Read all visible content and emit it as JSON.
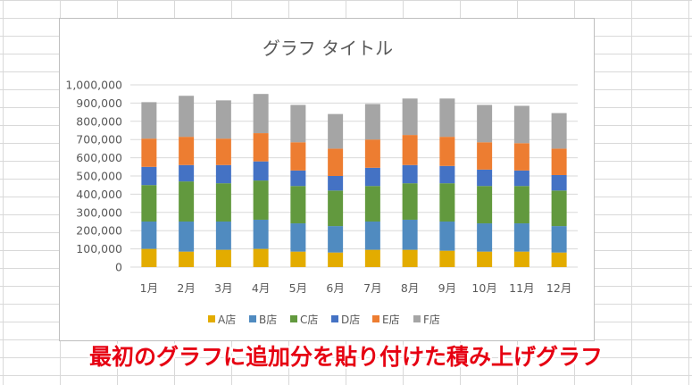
{
  "chart_data": {
    "type": "bar",
    "stacked": true,
    "title": "グラフ タイトル",
    "xlabel": "",
    "ylabel": "",
    "ylim": [
      0,
      1000000
    ],
    "yticks": [
      "0",
      "100,000",
      "200,000",
      "300,000",
      "400,000",
      "500,000",
      "600,000",
      "700,000",
      "800,000",
      "900,000",
      "1,000,000"
    ],
    "grid": true,
    "legend_position": "bottom",
    "categories": [
      "1月",
      "2月",
      "3月",
      "4月",
      "5月",
      "6月",
      "7月",
      "8月",
      "9月",
      "10月",
      "11月",
      "12月"
    ],
    "series": [
      {
        "name": "A店",
        "color": "#E3AC00",
        "values": [
          100000,
          85000,
          95000,
          100000,
          85000,
          80000,
          95000,
          95000,
          90000,
          85000,
          85000,
          80000
        ]
      },
      {
        "name": "B店",
        "color": "#508BC0",
        "values": [
          150000,
          165000,
          155000,
          160000,
          155000,
          145000,
          155000,
          165000,
          160000,
          155000,
          155000,
          145000
        ]
      },
      {
        "name": "C店",
        "color": "#62993E",
        "values": [
          200000,
          220000,
          210000,
          215000,
          205000,
          195000,
          195000,
          200000,
          210000,
          205000,
          205000,
          195000
        ]
      },
      {
        "name": "D店",
        "color": "#4472C4",
        "values": [
          100000,
          90000,
          100000,
          105000,
          85000,
          80000,
          100000,
          100000,
          95000,
          90000,
          85000,
          85000
        ]
      },
      {
        "name": "E店",
        "color": "#ED7D31",
        "values": [
          155000,
          155000,
          145000,
          155000,
          155000,
          150000,
          155000,
          165000,
          160000,
          150000,
          150000,
          145000
        ]
      },
      {
        "name": "F店",
        "color": "#A5A5A5",
        "values": [
          200000,
          225000,
          210000,
          215000,
          205000,
          190000,
          195000,
          200000,
          210000,
          205000,
          205000,
          195000
        ]
      }
    ]
  },
  "caption": "最初のグラフに追加分を貼り付けた積み上げグラフ"
}
